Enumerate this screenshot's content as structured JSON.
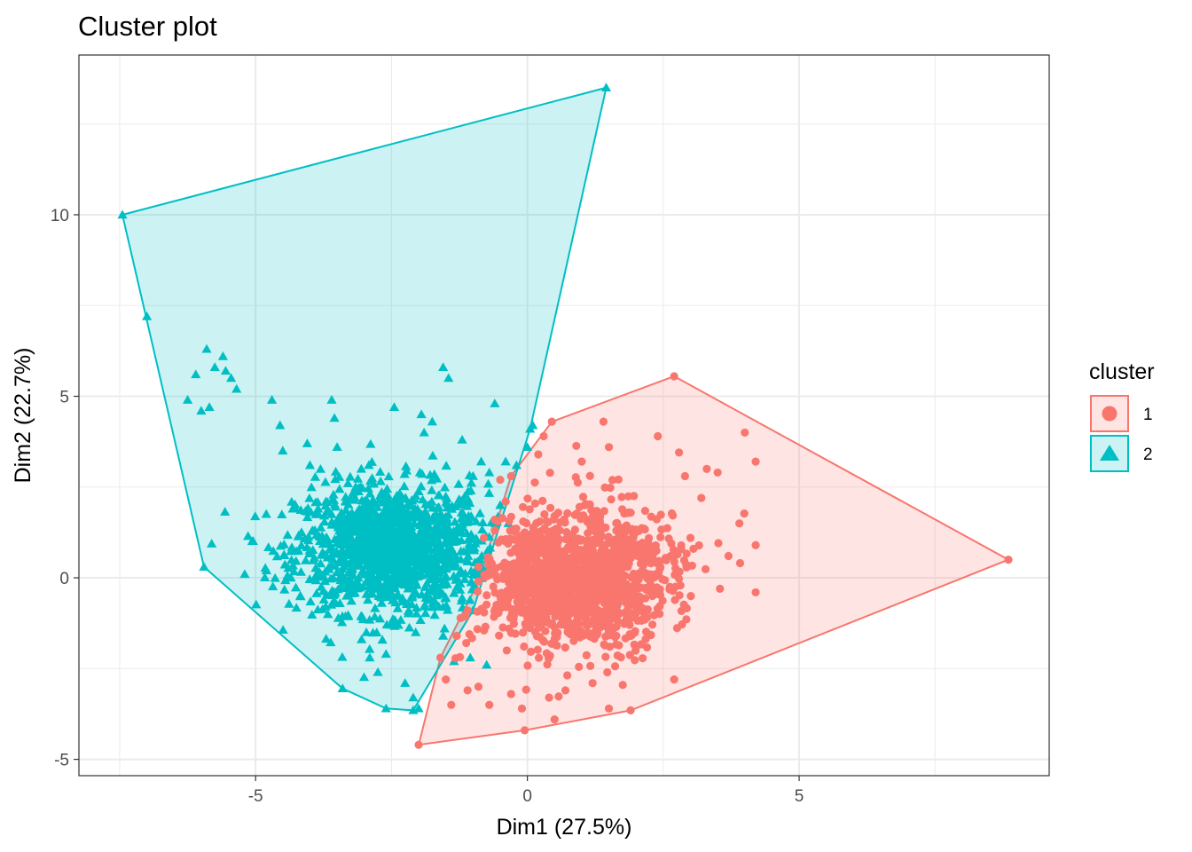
{
  "chart_data": {
    "type": "scatter",
    "title": "Cluster plot",
    "xlabel": "Dim1 (27.5%)",
    "ylabel": "Dim2 (22.7%)",
    "xlim": [
      -8.25,
      9.6
    ],
    "ylim": [
      -5.45,
      14.4
    ],
    "x_ticks": [
      -5,
      0,
      5
    ],
    "x_tick_labels": [
      "-5",
      "0",
      "5"
    ],
    "y_ticks": [
      -5,
      0,
      5,
      10
    ],
    "y_tick_labels": [
      "-5",
      "0",
      "5",
      "10"
    ],
    "grid": true,
    "legend": {
      "title": "cluster",
      "placement": "right",
      "entries": [
        {
          "label": "1",
          "color": "#F8766D",
          "shape": "circle"
        },
        {
          "label": "2",
          "color": "#00BFC4",
          "shape": "triangle"
        }
      ]
    },
    "series": [
      {
        "name": "1",
        "color": "#F8766D",
        "marker": "circle",
        "hull": [
          [
            -2.0,
            -4.6
          ],
          [
            -1.6,
            -2.2
          ],
          [
            -0.9,
            -0.1
          ],
          [
            -0.3,
            2.8
          ],
          [
            0.45,
            4.3
          ],
          [
            2.7,
            5.55
          ],
          [
            8.85,
            0.5
          ],
          [
            1.9,
            -3.65
          ],
          [
            -0.05,
            -4.2
          ]
        ],
        "core": {
          "center": [
            0.9,
            0.0
          ],
          "radius": [
            1.6,
            1.8
          ],
          "rotation_deg": -55
        },
        "outliers": [
          [
            4.0,
            4.0
          ],
          [
            4.2,
            3.2
          ],
          [
            4.2,
            0.9
          ],
          [
            4.2,
            -0.4
          ],
          [
            3.9,
            1.5
          ],
          [
            3.7,
            0.6
          ],
          [
            3.5,
            2.9
          ],
          [
            3.3,
            3.0
          ],
          [
            3.2,
            2.2
          ],
          [
            3.0,
            1.1
          ],
          [
            2.9,
            2.8
          ],
          [
            2.7,
            -2.8
          ],
          [
            2.4,
            3.9
          ],
          [
            2.3,
            -0.5
          ],
          [
            2.2,
            -1.1
          ],
          [
            2.0,
            -1.9
          ],
          [
            1.9,
            -1.6
          ],
          [
            1.5,
            -3.6
          ],
          [
            1.5,
            3.6
          ],
          [
            1.4,
            4.3
          ],
          [
            1.2,
            -2.9
          ],
          [
            1.0,
            3.2
          ],
          [
            0.7,
            -3.1
          ],
          [
            0.5,
            -3.9
          ],
          [
            0.4,
            -3.3
          ],
          [
            0.3,
            3.9
          ],
          [
            0.2,
            3.4
          ],
          [
            -0.1,
            -3.6
          ],
          [
            -0.3,
            -3.2
          ],
          [
            -0.5,
            2.7
          ],
          [
            -0.7,
            -3.5
          ],
          [
            -0.9,
            -3.0
          ],
          [
            -1.1,
            -3.1
          ],
          [
            -1.4,
            -3.5
          ],
          [
            -1.5,
            -2.8
          ],
          [
            -1.3,
            -1.6
          ],
          [
            -1.1,
            -0.9
          ],
          [
            -0.9,
            0.3
          ],
          [
            -0.8,
            1.1
          ],
          [
            -0.6,
            1.6
          ],
          [
            -0.4,
            2.1
          ]
        ]
      },
      {
        "name": "2",
        "color": "#00BFC4",
        "marker": "triangle",
        "hull": [
          [
            -7.45,
            10.0
          ],
          [
            1.45,
            13.5
          ],
          [
            0.05,
            4.1
          ],
          [
            -1.0,
            -0.9
          ],
          [
            -2.1,
            -3.65
          ],
          [
            -2.6,
            -3.6
          ],
          [
            -3.4,
            -3.05
          ],
          [
            -5.95,
            0.3
          ]
        ],
        "core": {
          "center": [
            -2.5,
            0.8
          ],
          "radius": [
            1.6,
            1.6
          ],
          "rotation_deg": 0
        },
        "outliers": [
          [
            -7.0,
            7.2
          ],
          [
            -6.25,
            4.9
          ],
          [
            -6.1,
            5.6
          ],
          [
            -6.0,
            4.6
          ],
          [
            -5.9,
            6.3
          ],
          [
            -5.85,
            4.7
          ],
          [
            -5.75,
            5.8
          ],
          [
            -5.6,
            6.1
          ],
          [
            -5.55,
            5.7
          ],
          [
            -5.45,
            5.5
          ],
          [
            -5.35,
            5.2
          ],
          [
            -5.2,
            0.1
          ],
          [
            -4.8,
            0.2
          ],
          [
            -4.7,
            4.9
          ],
          [
            -4.55,
            4.2
          ],
          [
            -4.5,
            3.5
          ],
          [
            -4.35,
            0.0
          ],
          [
            -4.05,
            3.7
          ],
          [
            -4.0,
            3.1
          ],
          [
            -3.85,
            1.9
          ],
          [
            -3.6,
            4.9
          ],
          [
            -3.55,
            4.4
          ],
          [
            -3.5,
            3.6
          ],
          [
            -3.3,
            2.6
          ],
          [
            -3.05,
            -1.7
          ],
          [
            -2.9,
            -2.2
          ],
          [
            -2.75,
            -2.6
          ],
          [
            -2.6,
            -2.1
          ],
          [
            -2.45,
            4.7
          ],
          [
            -2.25,
            -2.9
          ],
          [
            -2.1,
            -3.3
          ],
          [
            -2.0,
            -3.6
          ],
          [
            -1.95,
            4.5
          ],
          [
            -1.9,
            4.0
          ],
          [
            -1.75,
            4.3
          ],
          [
            -1.55,
            -1.6
          ],
          [
            -1.55,
            5.8
          ],
          [
            -1.45,
            5.5
          ],
          [
            -1.35,
            -2.3
          ],
          [
            -1.2,
            3.8
          ],
          [
            -1.0,
            2.8
          ],
          [
            -0.85,
            3.2
          ],
          [
            -0.7,
            2.9
          ],
          [
            -0.6,
            4.8
          ],
          [
            -0.4,
            3.2
          ],
          [
            -0.2,
            3.1
          ],
          [
            0.0,
            3.6
          ],
          [
            0.1,
            4.2
          ],
          [
            -0.5,
            2.0
          ],
          [
            -0.35,
            1.5
          ],
          [
            -0.75,
            -2.4
          ],
          [
            -1.05,
            -2.2
          ]
        ]
      }
    ]
  }
}
